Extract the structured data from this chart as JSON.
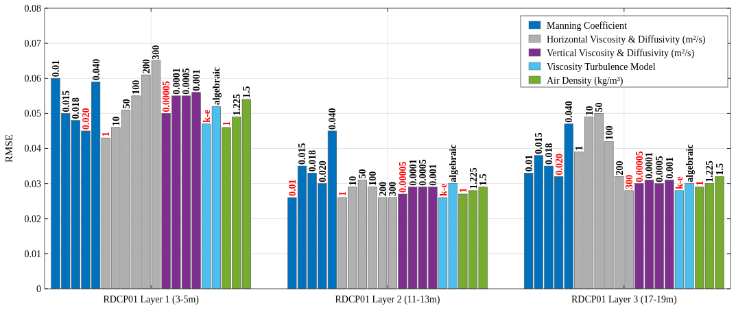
{
  "chart_data": {
    "type": "bar",
    "ylabel": "RMSE",
    "categories": [
      "RDCP01 Layer 1 (3-5m)",
      "RDCP01 Layer 2 (11-13m)",
      "RDCP01 Layer 3 (17-19m)"
    ],
    "ylim": [
      0,
      0.08
    ],
    "yticks": [
      0,
      0.01,
      0.02,
      0.03,
      0.04,
      0.05,
      0.06,
      0.07,
      0.08
    ],
    "grid": true,
    "legend": "top right",
    "series": [
      {
        "name": "Manning Coefficient",
        "color": "#0072bd",
        "values": [
          0.06,
          0.026,
          0.033
        ]
      },
      {
        "color": "#0072bd",
        "values": [
          0.05,
          0.035,
          0.038
        ]
      },
      {
        "color": "#0072bd",
        "values": [
          0.048,
          0.033,
          0.035
        ]
      },
      {
        "color": "#0072bd",
        "values": [
          0.045,
          0.03,
          0.032
        ]
      },
      {
        "color": "#0072bd",
        "values": [
          0.059,
          0.045,
          0.047
        ]
      },
      {
        "name": "Horizontal Viscosity & Diffusivity (m²/s)",
        "color": "#b0b0b0",
        "values": [
          0.043,
          0.026,
          0.039
        ]
      },
      {
        "color": "#b0b0b0",
        "values": [
          0.046,
          0.029,
          0.049
        ]
      },
      {
        "color": "#b0b0b0",
        "values": [
          0.051,
          0.031,
          0.05
        ]
      },
      {
        "color": "#b0b0b0",
        "values": [
          0.055,
          0.029,
          0.042
        ]
      },
      {
        "color": "#b0b0b0",
        "values": [
          0.061,
          0.026,
          0.032
        ]
      },
      {
        "color": "#b0b0b0",
        "values": [
          0.065,
          0.026,
          0.028
        ]
      },
      {
        "name": "Vertical Viscosity & Diffusivity (m²/s)",
        "color": "#7e2f8e",
        "values": [
          0.05,
          0.027,
          0.03
        ]
      },
      {
        "color": "#7e2f8e",
        "values": [
          0.055,
          0.029,
          0.031
        ]
      },
      {
        "color": "#7e2f8e",
        "values": [
          0.055,
          0.029,
          0.03
        ]
      },
      {
        "color": "#7e2f8e",
        "values": [
          0.056,
          0.029,
          0.031
        ]
      },
      {
        "name": "Viscosity Turbulence Model",
        "color": "#4dbeee",
        "values": [
          0.047,
          0.026,
          0.028
        ]
      },
      {
        "color": "#4dbeee",
        "values": [
          0.052,
          0.03,
          0.03
        ]
      },
      {
        "name": "Air Density (kg/m³)",
        "color": "#77ac30",
        "values": [
          0.046,
          0.027,
          0.029
        ]
      },
      {
        "color": "#77ac30",
        "values": [
          0.049,
          0.028,
          0.03
        ]
      },
      {
        "color": "#77ac30",
        "values": [
          0.054,
          0.029,
          0.032
        ]
      }
    ],
    "annotations": [
      "0.01",
      "0.015",
      "0.018",
      "0.020",
      "0.040",
      "1",
      "10",
      "50",
      "100",
      "200",
      "300",
      "0.00005",
      "0.0001",
      "0.0005",
      "0.001",
      "k-e",
      "algebraic",
      "1",
      "1.225",
      "1.5",
      "0.01",
      "0.015",
      "0.018",
      "0.020",
      "0.040",
      "1",
      "10",
      "50",
      "100",
      "200",
      "300",
      "0.00005",
      "0.0001",
      "0.0005",
      "0.001",
      "k-e",
      "algebraic",
      "1",
      "1.225",
      "1.5",
      "0.01",
      "0.015",
      "0.018",
      "0.020",
      "0.040",
      "1",
      "10",
      "50",
      "100",
      "200",
      "300",
      "0.00005",
      "0.0001",
      "0.0005",
      "0.001",
      "k-e",
      "algebraic",
      "1",
      "1.225",
      "1.5"
    ]
  }
}
